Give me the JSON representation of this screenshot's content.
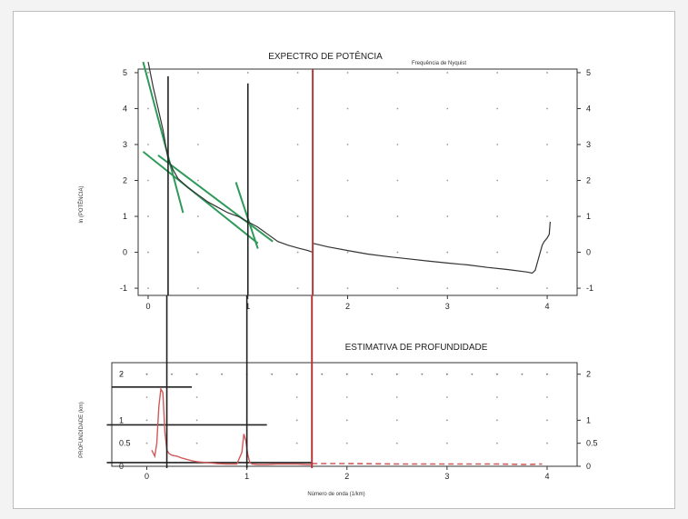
{
  "chart_data": [
    {
      "type": "line",
      "title": "EXPECTRO DE POTÊNCIA",
      "annotation": "Frequência de Nyquist",
      "ylabel": "ln (POTÊNCIA)",
      "xlim": [
        -0.1,
        4.3
      ],
      "ylim": [
        -1.2,
        5.1
      ],
      "xticks": [
        "0",
        "1",
        "2",
        "3",
        "4"
      ],
      "yticks": [
        "-1",
        "0",
        "1",
        "2",
        "3",
        "4",
        "5"
      ],
      "grid": "dotted",
      "series": [
        {
          "color": "#333333",
          "x": [
            0.0,
            0.05,
            0.1,
            0.15,
            0.2,
            0.25,
            0.3,
            0.4,
            0.5,
            0.6,
            0.7,
            0.8,
            0.9,
            1.0,
            1.1,
            1.2,
            1.3,
            1.4,
            1.5,
            1.6,
            1.65
          ],
          "y": [
            5.3,
            4.6,
            4.0,
            3.4,
            2.6,
            2.3,
            2.05,
            1.8,
            1.6,
            1.4,
            1.25,
            1.1,
            1.0,
            0.85,
            0.7,
            0.5,
            0.3,
            0.2,
            0.12,
            0.05,
            0.0
          ]
        },
        {
          "color": "#333333",
          "x": [
            1.65,
            1.7,
            1.8,
            2.0,
            2.2,
            2.4,
            2.6,
            2.8,
            3.0,
            3.2,
            3.4,
            3.6,
            3.8,
            3.85,
            3.88,
            3.92,
            3.95,
            3.97,
            4.0,
            4.02,
            4.03
          ],
          "y": [
            0.25,
            0.22,
            0.15,
            0.05,
            -0.05,
            -0.12,
            -0.18,
            -0.24,
            -0.3,
            -0.35,
            -0.42,
            -0.48,
            -0.55,
            -0.58,
            -0.5,
            -0.1,
            0.2,
            0.3,
            0.4,
            0.5,
            0.85
          ]
        }
      ],
      "fit_lines": [
        {
          "color": "#2f9a5a",
          "x": [
            -0.05,
            0.35
          ],
          "y": [
            5.3,
            1.1
          ]
        },
        {
          "color": "#2f9a5a",
          "x": [
            -0.05,
            1.1
          ],
          "y": [
            2.8,
            0.25
          ]
        },
        {
          "color": "#2f9a5a",
          "x": [
            0.1,
            1.25
          ],
          "y": [
            2.7,
            0.3
          ]
        },
        {
          "color": "#2f9a5a",
          "x": [
            0.88,
            1.1
          ],
          "y": [
            1.95,
            0.1
          ]
        }
      ],
      "vlines": [
        {
          "color": "#222222",
          "x": 0.2,
          "y": [
            -1.2,
            4.9
          ]
        },
        {
          "color": "#222222",
          "x": 1.0,
          "y": [
            -1.2,
            4.7
          ]
        },
        {
          "color": "#b23a3a",
          "x": 1.65,
          "y": [
            -1.2,
            5.1
          ]
        }
      ]
    },
    {
      "type": "line",
      "title": "ESTIMATIVA DE PROFUNDIDADE",
      "xlabel": "Número de onda (1/km)",
      "ylabel": "PROFUNDIDADE (km)",
      "xlim": [
        -0.35,
        4.3
      ],
      "ylim": [
        0,
        2.25
      ],
      "xticks": [
        "0",
        "1",
        "2",
        "3",
        "4"
      ],
      "yticks_left": [
        "0",
        "0.5",
        "1",
        "2"
      ],
      "yticks_right": [
        "0",
        "0.5",
        "1",
        "2"
      ],
      "grid": "dotted",
      "series": [
        {
          "color": "#d05a5a",
          "x": [
            0.05,
            0.08,
            0.1,
            0.12,
            0.14,
            0.16,
            0.18,
            0.2,
            0.22,
            0.25,
            0.3,
            0.35,
            0.4,
            0.45,
            0.5,
            0.6,
            0.7,
            0.8,
            0.9,
            0.95,
            0.97,
            0.99,
            1.01,
            1.03,
            1.05,
            1.1,
            1.2,
            1.3,
            1.4,
            1.5,
            1.6,
            1.65
          ],
          "y": [
            0.35,
            0.22,
            0.5,
            1.3,
            1.68,
            1.6,
            0.75,
            0.35,
            0.28,
            0.24,
            0.22,
            0.18,
            0.15,
            0.12,
            0.1,
            0.08,
            0.06,
            0.05,
            0.05,
            0.3,
            0.7,
            0.55,
            0.25,
            0.08,
            0.05,
            0.04,
            0.04,
            0.05,
            0.05,
            0.05,
            0.04,
            0.04
          ]
        },
        {
          "color": "#d05a5a",
          "dashed": true,
          "x": [
            1.65,
            2.0,
            2.5,
            3.0,
            3.5,
            3.8,
            3.95
          ],
          "y": [
            0.06,
            0.06,
            0.05,
            0.05,
            0.05,
            0.04,
            0.05
          ]
        }
      ],
      "hlines": [
        {
          "color": "#222222",
          "y": 1.72,
          "x": [
            -0.35,
            0.45
          ]
        },
        {
          "color": "#222222",
          "y": 0.9,
          "x": [
            -0.4,
            1.2
          ]
        },
        {
          "color": "#222222",
          "y": 0.08,
          "x": [
            -0.4,
            1.65
          ]
        }
      ],
      "vlines": [
        {
          "color": "#222222",
          "x": 0.2,
          "y": [
            0,
            2.25
          ]
        },
        {
          "color": "#222222",
          "x": 1.0,
          "y": [
            0,
            2.25
          ]
        },
        {
          "color": "#b23a3a",
          "x": 1.65,
          "y": [
            0,
            2.25
          ]
        }
      ]
    }
  ]
}
